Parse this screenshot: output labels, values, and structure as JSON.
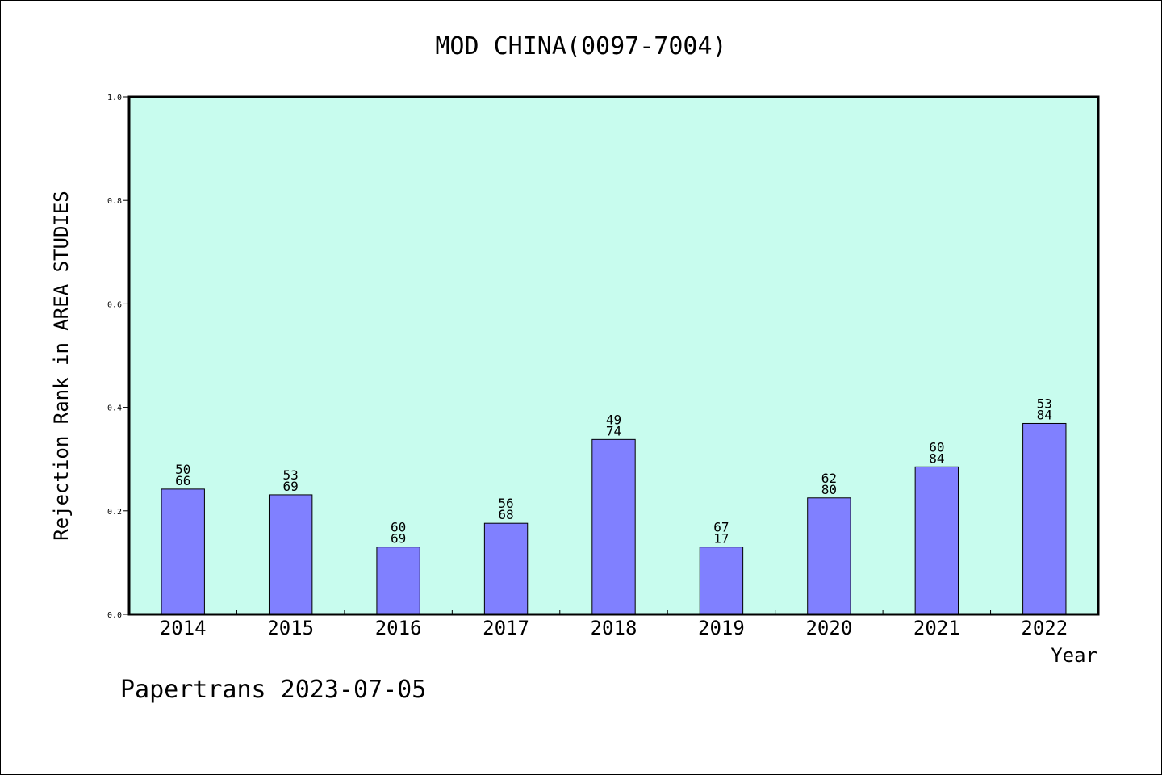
{
  "chart_data": {
    "type": "bar",
    "title": "MOD CHINA(0097-7004)",
    "xlabel": "Year",
    "ylabel": "Rejection Rank in AREA STUDIES",
    "ylim": [
      0,
      1.0
    ],
    "yticks": [
      "0.0",
      "0.2",
      "0.4",
      "0.6",
      "0.8",
      "1.0"
    ],
    "ytick_values": [
      0,
      0.2,
      0.4,
      0.6,
      0.8,
      1.0
    ],
    "categories": [
      "2014",
      "2015",
      "2016",
      "2017",
      "2018",
      "2019",
      "2020",
      "2021",
      "2022"
    ],
    "values": [
      0.242,
      0.231,
      0.13,
      0.176,
      0.338,
      0.13,
      0.225,
      0.285,
      0.369
    ],
    "label_top": [
      "50",
      "53",
      "60",
      "56",
      "49",
      "67",
      "62",
      "60",
      "53"
    ],
    "label_bottom": [
      "66",
      "69",
      "69",
      "68",
      "74",
      "17",
      "80",
      "84",
      "84"
    ],
    "grid": false,
    "colors": {
      "plot_bg": "#c8fcee",
      "bar": "#8080ff",
      "bar_edge": "#000000"
    }
  },
  "footer": "Papertrans 2023-07-05"
}
